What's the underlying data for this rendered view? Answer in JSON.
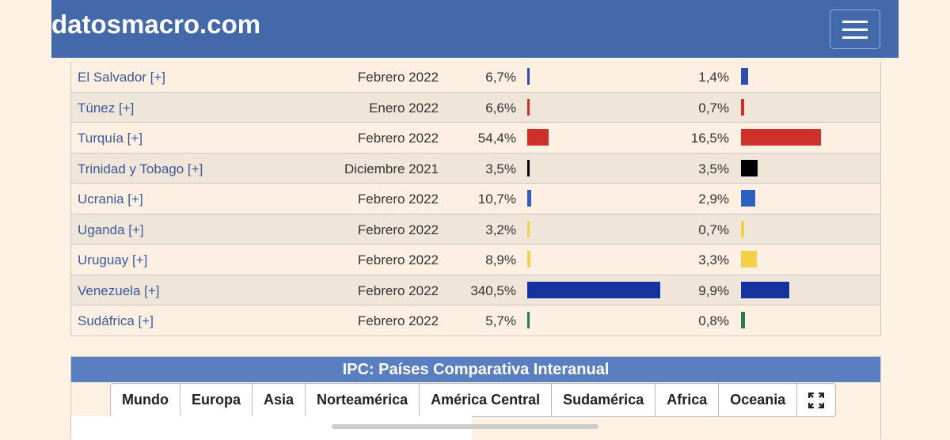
{
  "header": {
    "title": "datosmacro.com"
  },
  "table": {
    "rows": [
      {
        "country": "El Salvador [+]",
        "date": "Febrero 2022",
        "ipc": {
          "value": 6.7,
          "label": "6,7%"
        },
        "ipc2": {
          "value": 1.4,
          "label": "1,4%"
        },
        "color": "#2a4fb0"
      },
      {
        "country": "Túnez [+]",
        "date": "Enero 2022",
        "ipc": {
          "value": 6.6,
          "label": "6,6%"
        },
        "ipc2": {
          "value": 0.7,
          "label": "0,7%"
        },
        "color": "#d0302a"
      },
      {
        "country": "Turquía [+]",
        "date": "Febrero 2022",
        "ipc": {
          "value": 54.4,
          "label": "54,4%"
        },
        "ipc2": {
          "value": 16.5,
          "label": "16,5%"
        },
        "color": "#d0302a"
      },
      {
        "country": "Trinidad y Tobago [+]",
        "date": "Diciembre 2021",
        "ipc": {
          "value": 3.5,
          "label": "3,5%"
        },
        "ipc2": {
          "value": 3.5,
          "label": "3,5%"
        },
        "color": "#000000"
      },
      {
        "country": "Ucrania [+]",
        "date": "Febrero 2022",
        "ipc": {
          "value": 10.7,
          "label": "10,7%"
        },
        "ipc2": {
          "value": 2.9,
          "label": "2,9%"
        },
        "color": "#2d5fc0"
      },
      {
        "country": "Uganda [+]",
        "date": "Febrero 2022",
        "ipc": {
          "value": 3.2,
          "label": "3,2%"
        },
        "ipc2": {
          "value": 0.7,
          "label": "0,7%"
        },
        "color": "#f3d04a"
      },
      {
        "country": "Uruguay [+]",
        "date": "Febrero 2022",
        "ipc": {
          "value": 8.9,
          "label": "8,9%"
        },
        "ipc2": {
          "value": 3.3,
          "label": "3,3%"
        },
        "color": "#f3d04a"
      },
      {
        "country": "Venezuela [+]",
        "date": "Febrero 2022",
        "ipc": {
          "value": 340.5,
          "label": "340,5%"
        },
        "ipc2": {
          "value": 9.9,
          "label": "9,9%"
        },
        "color": "#1533a0"
      },
      {
        "country": "Sudáfrica [+]",
        "date": "Febrero 2022",
        "ipc": {
          "value": 5.7,
          "label": "5,7%"
        },
        "ipc2": {
          "value": 0.8,
          "label": "0,8%"
        },
        "color": "#2e7a4a"
      }
    ]
  },
  "section": {
    "title": "IPC: Países Comparativa Interanual",
    "tabs": [
      "Mundo",
      "Europa",
      "Asia",
      "Norteamérica",
      "América Central",
      "Sudamérica",
      "Africa",
      "Oceania"
    ]
  }
}
